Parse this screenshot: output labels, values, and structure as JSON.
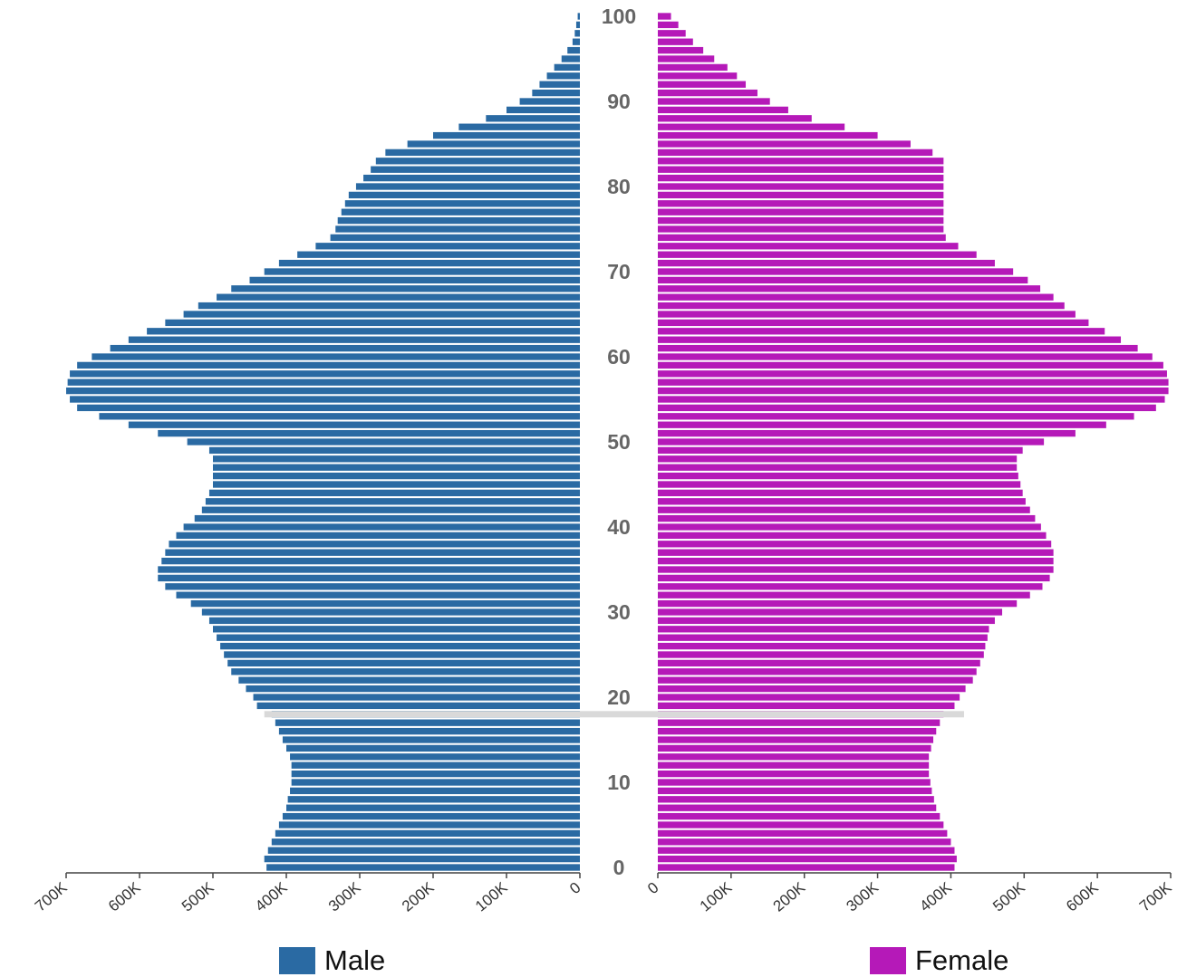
{
  "chart_data": {
    "type": "bar",
    "orientation": "horizontal",
    "subtype": "population-pyramid",
    "age_range": [
      0,
      100
    ],
    "age_labels": [
      "0",
      "10",
      "20",
      "30",
      "40",
      "50",
      "60",
      "70",
      "80",
      "90",
      "100"
    ],
    "x_tick_labels": [
      "0",
      "100K",
      "200K",
      "300K",
      "400K",
      "500K",
      "600K",
      "700K"
    ],
    "xlim": [
      0,
      700000
    ],
    "highlighted_age": 18,
    "series": [
      {
        "name": "Male",
        "color": "#2a6aa3",
        "values": [
          427000,
          430000,
          425000,
          420000,
          415000,
          410000,
          405000,
          400000,
          398000,
          395000,
          393000,
          393000,
          393000,
          395000,
          400000,
          405000,
          410000,
          415000,
          420000,
          440000,
          445000,
          455000,
          465000,
          475000,
          480000,
          485000,
          490000,
          495000,
          500000,
          505000,
          515000,
          530000,
          550000,
          565000,
          575000,
          575000,
          570000,
          565000,
          560000,
          550000,
          540000,
          525000,
          515000,
          510000,
          505000,
          500000,
          500000,
          500000,
          500000,
          505000,
          535000,
          575000,
          615000,
          655000,
          685000,
          695000,
          700000,
          698000,
          695000,
          685000,
          665000,
          640000,
          615000,
          590000,
          565000,
          540000,
          520000,
          495000,
          475000,
          450000,
          430000,
          410000,
          385000,
          360000,
          340000,
          333000,
          330000,
          325000,
          320000,
          315000,
          305000,
          295000,
          285000,
          278000,
          265000,
          235000,
          200000,
          165000,
          128000,
          100000,
          82000,
          65000,
          55000,
          45000,
          35000,
          25000,
          17000,
          10000,
          7000,
          5000,
          3000
        ]
      },
      {
        "name": "Female",
        "color": "#b519b8",
        "values": [
          405000,
          408000,
          405000,
          400000,
          395000,
          390000,
          385000,
          380000,
          377000,
          374000,
          372000,
          370000,
          370000,
          370000,
          373000,
          376000,
          380000,
          385000,
          390000,
          405000,
          412000,
          420000,
          430000,
          435000,
          440000,
          445000,
          447000,
          450000,
          452000,
          460000,
          470000,
          490000,
          508000,
          525000,
          535000,
          540000,
          540000,
          540000,
          537000,
          530000,
          523000,
          515000,
          508000,
          502000,
          498000,
          495000,
          492000,
          490000,
          490000,
          498000,
          527000,
          570000,
          612000,
          650000,
          680000,
          692000,
          697000,
          697000,
          695000,
          690000,
          675000,
          655000,
          632000,
          610000,
          588000,
          570000,
          555000,
          540000,
          522000,
          505000,
          485000,
          460000,
          435000,
          410000,
          393000,
          390000,
          390000,
          390000,
          390000,
          390000,
          390000,
          390000,
          390000,
          390000,
          375000,
          345000,
          300000,
          255000,
          210000,
          178000,
          153000,
          136000,
          120000,
          108000,
          95000,
          77000,
          62000,
          48000,
          38000,
          28000,
          18000
        ]
      }
    ],
    "legend": [
      {
        "label": "Male",
        "color": "#2a6aa3"
      },
      {
        "label": "Female",
        "color": "#b519b8"
      }
    ],
    "legend_position": "bottom",
    "grid": false
  }
}
